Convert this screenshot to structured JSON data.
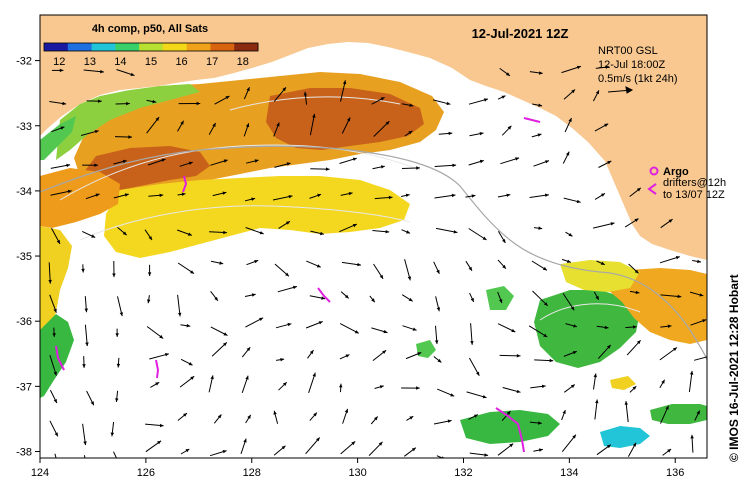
{
  "map": {
    "title": "12-Jul-2021 12Z",
    "product": "4h comp, p50, All Sats",
    "credit": "© IMOS 16-Jul-2021 12:28 Hobart",
    "colorbar": {
      "ticks": [
        "12",
        "13",
        "14",
        "15",
        "16",
        "17",
        "18"
      ],
      "min": 11.5,
      "max": 18.5,
      "colors": [
        "#1a1aa0",
        "#1e6fe0",
        "#22c4d8",
        "#39d06a",
        "#b7e030",
        "#f2d818",
        "#f0a21a",
        "#d96410",
        "#8a2a10"
      ]
    },
    "current_legend": {
      "line1": "NRT00 GSL",
      "line2": "12-Jul 18:00Z",
      "line3": "0.5m/s (1kt 24h)"
    },
    "argo_legend": {
      "label": "Argo",
      "drifters_line1": "drifters@12h",
      "drifters_line2": "to 13/07 12Z"
    },
    "lon_ticks": [
      "124",
      "126",
      "128",
      "130",
      "132",
      "134",
      "136"
    ],
    "lat_ticks": [
      "-32",
      "-33",
      "-34",
      "-35",
      "-36",
      "-37",
      "-38"
    ],
    "lon_range": [
      124,
      136.6
    ],
    "lat_range": [
      -31.3,
      -38.1
    ],
    "colors": {
      "land": "#f8c890",
      "ocean": "#ffffff",
      "argo": "#e020e0",
      "contour": "#e8e8e8",
      "bathymetry": "#a8a8a8"
    }
  }
}
